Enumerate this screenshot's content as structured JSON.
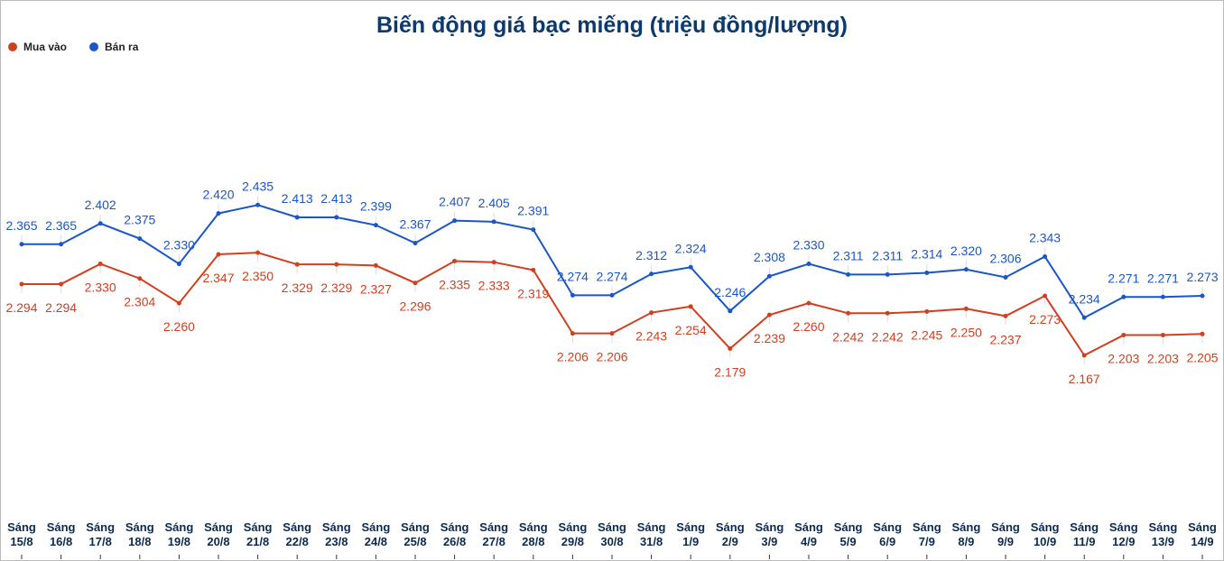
{
  "chart_data": {
    "type": "line",
    "title": "Biến động giá bạc miếng (triệu đồng/lượng)",
    "categories": [
      "Sáng 15/8",
      "Sáng 16/8",
      "Sáng 17/8",
      "Sáng 18/8",
      "Sáng 19/8",
      "Sáng 20/8",
      "Sáng 21/8",
      "Sáng 22/8",
      "Sáng 23/8",
      "Sáng 24/8",
      "Sáng 25/8",
      "Sáng 26/8",
      "Sáng 27/8",
      "Sáng 28/8",
      "Sáng 29/8",
      "Sáng 30/8",
      "Sáng 31/8",
      "Sáng 1/9",
      "Sáng 2/9",
      "Sáng 3/9",
      "Sáng 4/9",
      "Sáng 5/9",
      "Sáng 6/9",
      "Sáng 7/9",
      "Sáng 8/9",
      "Sáng 9/9",
      "Sáng 10/9",
      "Sáng 11/9",
      "Sáng 12/9",
      "Sáng 13/9",
      "Sáng 14/9"
    ],
    "series": [
      {
        "name": "Mua vào",
        "color": "#d0401f",
        "label_side": "below",
        "values": [
          2.294,
          2.294,
          2.33,
          2.304,
          2.26,
          2.347,
          2.35,
          2.329,
          2.329,
          2.327,
          2.296,
          2.335,
          2.333,
          2.319,
          2.206,
          2.206,
          2.243,
          2.254,
          2.179,
          2.239,
          2.26,
          2.242,
          2.242,
          2.245,
          2.25,
          2.237,
          2.273,
          2.167,
          2.203,
          2.203,
          2.205
        ],
        "value_labels": [
          "2.294",
          "2.294",
          "2.330",
          "2.304",
          "2.260",
          "2.347",
          "2.350",
          "2.329",
          "2.329",
          "2.327",
          "2.296",
          "2.335",
          "2.333",
          "2.319",
          "2.206",
          "2.206",
          "2.243",
          "2.254",
          "2.179",
          "2.239",
          "2.260",
          "2.242",
          "2.242",
          "2.245",
          "2.250",
          "2.237",
          "2.273",
          "2.167",
          "2.203",
          "2.203",
          "2.205"
        ]
      },
      {
        "name": "Bán ra",
        "color": "#1a56c8",
        "label_side": "above",
        "values": [
          2.365,
          2.365,
          2.402,
          2.375,
          2.33,
          2.42,
          2.435,
          2.413,
          2.413,
          2.399,
          2.367,
          2.407,
          2.405,
          2.391,
          2.274,
          2.274,
          2.312,
          2.324,
          2.246,
          2.308,
          2.33,
          2.311,
          2.311,
          2.314,
          2.32,
          2.306,
          2.343,
          2.234,
          2.271,
          2.271,
          2.273
        ],
        "value_labels": [
          "2.365",
          "2.365",
          "2.402",
          "2.375",
          "2.330",
          "2.420",
          "2.435",
          "2.413",
          "2.413",
          "2.399",
          "2.367",
          "2.407",
          "2.405",
          "2.391",
          "2.274",
          "2.274",
          "2.312",
          "2.324",
          "2.246",
          "2.308",
          "2.330",
          "2.311",
          "2.311",
          "2.314",
          "2.320",
          "2.306",
          "2.343",
          "2.234",
          "2.271",
          "2.271",
          "2.273"
        ]
      }
    ],
    "ylim": [
      1.9,
      2.72
    ],
    "legend": "top-left"
  }
}
